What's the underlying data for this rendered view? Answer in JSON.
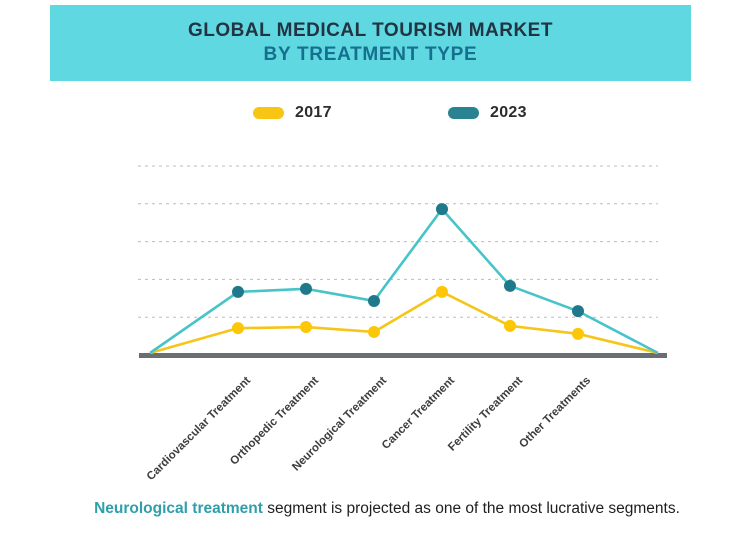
{
  "header": {
    "line1": "GLOBAL MEDICAL TOURISM MARKET",
    "line2": "BY TREATMENT TYPE",
    "bg_color": "#5fd8e2",
    "line1_color": "#223442",
    "line2_color": "#15708d"
  },
  "legend": {
    "items": [
      {
        "label": "2017",
        "color": "#f8c513"
      },
      {
        "label": "2023",
        "color": "#2a8391"
      }
    ]
  },
  "caption": {
    "highlight": "Neurological treatment",
    "rest": " segment is projected as one of the most lucrative segments.",
    "highlight_color": "#2f9faa",
    "text_color": "#1e1e1e"
  },
  "chart_data": {
    "type": "line",
    "title": "GLOBAL MEDICAL TOURISM MARKET BY TREATMENT TYPE",
    "xlabel": "",
    "ylabel": "",
    "categories": [
      "Cardiovascular Treatment",
      "Orthopedic Treatment",
      "Neurological Treatment",
      "Cancer Treatment",
      "Fertility Treatment",
      "Other Treatments"
    ],
    "series": [
      {
        "name": "2017",
        "line_color": "#f6c51a",
        "dot_color": "#fdc708",
        "values": [
          0.71,
          0.74,
          0.61,
          1.67,
          0.77,
          0.56
        ]
      },
      {
        "name": "2023",
        "line_color": "#47c4c9",
        "dot_color": "#20798b",
        "values": [
          1.67,
          1.75,
          1.43,
          3.86,
          1.83,
          1.16
        ]
      }
    ],
    "ylim": [
      0,
      5
    ],
    "y_units": "relative market size in gridline units (no numeric axis labels shown; values estimated from gridlines)",
    "grid": "5 horizontal dashed gridlines, no vertical grid",
    "legend_position": "top",
    "edge_points": "both series rise from 0 at the left plot edge and return to 0 at the right plot edge",
    "axis_color": "#6a6e71",
    "gridline_color": "#b9bdbf"
  }
}
